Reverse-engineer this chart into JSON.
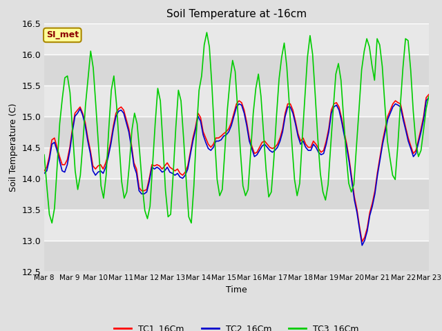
{
  "title": "Soil Temperature at -16cm",
  "xlabel": "Time",
  "ylabel": "Soil Temperature (C)",
  "ylim": [
    12.5,
    16.5
  ],
  "annotation_text": "SI_met",
  "annotation_bg": "#ffff99",
  "annotation_border": "#aa8800",
  "annotation_text_color": "#8b0000",
  "legend_labels": [
    "TC1_16Cm",
    "TC2_16Cm",
    "TC3_16Cm"
  ],
  "line_colors": [
    "#ff0000",
    "#0000cc",
    "#00cc00"
  ],
  "xtick_labels": [
    "Mar 8",
    "Mar 9",
    "Mar 10",
    "Mar 11",
    "Mar 12",
    "Mar 13",
    "Mar 14",
    "Mar 15",
    "Mar 16",
    "Mar 17",
    "Mar 18",
    "Mar 19",
    "Mar 20",
    "Mar 21",
    "Mar 22",
    "Mar 23"
  ],
  "tc1": [
    14.12,
    14.18,
    14.35,
    14.62,
    14.65,
    14.5,
    14.35,
    14.22,
    14.22,
    14.3,
    14.5,
    14.8,
    15.05,
    15.1,
    15.15,
    15.05,
    14.9,
    14.65,
    14.45,
    14.2,
    14.15,
    14.2,
    14.22,
    14.15,
    14.25,
    14.4,
    14.6,
    14.85,
    15.05,
    15.12,
    15.15,
    15.1,
    14.95,
    14.8,
    14.55,
    14.25,
    14.15,
    13.85,
    13.8,
    13.8,
    13.82,
    14.0,
    14.22,
    14.2,
    14.22,
    14.2,
    14.15,
    14.2,
    14.25,
    14.18,
    14.15,
    14.12,
    14.15,
    14.08,
    14.05,
    14.1,
    14.2,
    14.42,
    14.65,
    14.82,
    15.05,
    14.98,
    14.75,
    14.65,
    14.55,
    14.5,
    14.55,
    14.65,
    14.65,
    14.68,
    14.72,
    14.75,
    14.8,
    14.9,
    15.05,
    15.2,
    15.25,
    15.22,
    15.1,
    14.9,
    14.65,
    14.52,
    14.4,
    14.42,
    14.5,
    14.58,
    14.6,
    14.55,
    14.5,
    14.48,
    14.5,
    14.55,
    14.65,
    14.8,
    15.05,
    15.2,
    15.2,
    15.1,
    14.92,
    14.72,
    14.6,
    14.65,
    14.55,
    14.5,
    14.5,
    14.6,
    14.55,
    14.48,
    14.42,
    14.45,
    14.6,
    14.8,
    15.1,
    15.2,
    15.22,
    15.15,
    14.97,
    14.75,
    14.55,
    14.3,
    14.0,
    13.7,
    13.5,
    13.22,
    12.98,
    13.05,
    13.2,
    13.45,
    13.6,
    13.8,
    14.1,
    14.35,
    14.6,
    14.8,
    15.0,
    15.1,
    15.2,
    15.25,
    15.22,
    15.2,
    15.0,
    14.82,
    14.65,
    14.52,
    14.4,
    14.45,
    14.62,
    14.8,
    15.0,
    15.3,
    15.35
  ],
  "tc2": [
    14.08,
    14.12,
    14.3,
    14.55,
    14.58,
    14.45,
    14.28,
    14.12,
    14.1,
    14.22,
    14.45,
    14.75,
    15.0,
    15.05,
    15.12,
    15.02,
    14.85,
    14.6,
    14.4,
    14.12,
    14.05,
    14.1,
    14.12,
    14.08,
    14.18,
    14.35,
    14.55,
    14.8,
    15.0,
    15.08,
    15.1,
    15.05,
    14.9,
    14.75,
    14.5,
    14.2,
    14.08,
    13.8,
    13.75,
    13.75,
    13.78,
    13.95,
    14.18,
    14.15,
    14.18,
    14.15,
    14.1,
    14.12,
    14.18,
    14.1,
    14.08,
    14.05,
    14.08,
    14.02,
    14.0,
    14.05,
    14.15,
    14.38,
    14.6,
    14.78,
    15.0,
    14.92,
    14.7,
    14.58,
    14.48,
    14.45,
    14.5,
    14.6,
    14.6,
    14.62,
    14.68,
    14.7,
    14.75,
    14.85,
    15.0,
    15.15,
    15.2,
    15.18,
    15.05,
    14.85,
    14.6,
    14.48,
    14.35,
    14.38,
    14.45,
    14.52,
    14.55,
    14.5,
    14.45,
    14.42,
    14.45,
    14.5,
    14.6,
    14.75,
    15.0,
    15.15,
    15.15,
    15.05,
    14.88,
    14.68,
    14.55,
    14.6,
    14.5,
    14.45,
    14.45,
    14.55,
    14.5,
    14.42,
    14.38,
    14.4,
    14.55,
    14.75,
    15.05,
    15.15,
    15.18,
    15.1,
    14.92,
    14.7,
    14.5,
    14.25,
    13.95,
    13.65,
    13.45,
    13.18,
    12.92,
    13.0,
    13.15,
    13.4,
    13.55,
    13.75,
    14.05,
    14.3,
    14.55,
    14.75,
    14.95,
    15.05,
    15.15,
    15.2,
    15.18,
    15.15,
    14.95,
    14.78,
    14.6,
    14.48,
    14.35,
    14.4,
    14.58,
    14.75,
    14.95,
    15.25,
    15.3
  ],
  "tc3": [
    14.38,
    13.88,
    13.42,
    13.28,
    13.52,
    14.18,
    14.88,
    15.28,
    15.62,
    15.65,
    15.38,
    14.75,
    14.12,
    13.82,
    14.05,
    14.58,
    15.18,
    15.62,
    16.05,
    15.78,
    15.18,
    14.55,
    13.88,
    13.68,
    14.05,
    14.78,
    15.42,
    15.65,
    15.2,
    14.58,
    13.95,
    13.68,
    13.78,
    14.22,
    14.78,
    15.05,
    14.88,
    14.42,
    13.88,
    13.48,
    13.35,
    13.55,
    14.22,
    14.88,
    15.45,
    15.25,
    14.55,
    13.8,
    13.38,
    13.42,
    14.08,
    14.82,
    15.42,
    15.25,
    14.65,
    13.98,
    13.38,
    13.28,
    13.88,
    14.75,
    15.42,
    15.65,
    16.15,
    16.35,
    16.12,
    15.48,
    14.68,
    13.98,
    13.72,
    13.82,
    14.45,
    15.12,
    15.58,
    15.9,
    15.72,
    15.08,
    14.45,
    13.88,
    13.72,
    13.82,
    14.42,
    15.05,
    15.45,
    15.68,
    15.32,
    14.72,
    14.12,
    13.7,
    13.78,
    14.32,
    15.0,
    15.6,
    15.95,
    16.18,
    15.8,
    15.18,
    14.55,
    13.98,
    13.72,
    13.92,
    14.65,
    15.3,
    15.95,
    16.3,
    16.0,
    15.35,
    14.65,
    14.08,
    13.78,
    13.65,
    13.9,
    14.52,
    15.12,
    15.68,
    15.85,
    15.58,
    14.98,
    14.38,
    13.92,
    13.78,
    13.9,
    14.52,
    15.12,
    15.75,
    16.05,
    16.25,
    16.12,
    15.82,
    15.58,
    16.25,
    16.15,
    15.8,
    15.18,
    14.6,
    14.32,
    14.05,
    13.98,
    14.52,
    15.18,
    15.78,
    16.25,
    16.22,
    15.75,
    15.08,
    14.58,
    14.35,
    14.45,
    14.78,
    15.12,
    15.32
  ]
}
